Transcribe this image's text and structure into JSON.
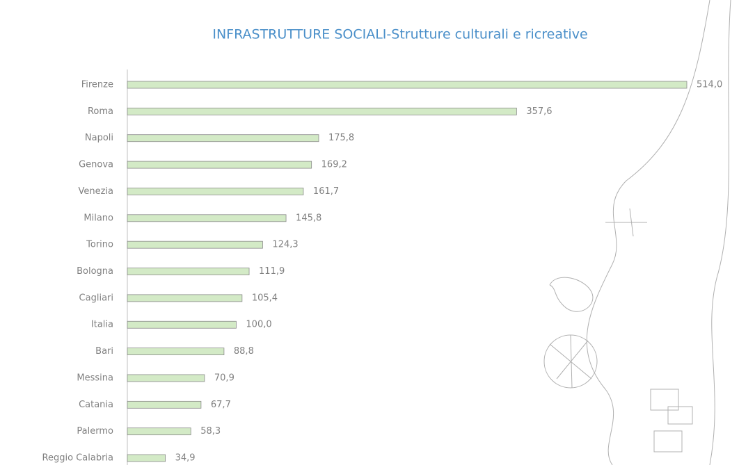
{
  "chart_data": {
    "type": "bar",
    "orientation": "horizontal",
    "title": "INFRASTRUTTURE SOCIALI-Strutture culturali e ricreative",
    "categories": [
      "Firenze",
      "Roma",
      "Napoli",
      "Genova",
      "Venezia",
      "Milano",
      "Torino",
      "Bologna",
      "Cagliari",
      "Italia",
      "Bari",
      "Messina",
      "Catania",
      "Palermo",
      "Reggio Calabria"
    ],
    "values": [
      514.0,
      357.6,
      175.8,
      169.2,
      161.7,
      145.8,
      124.3,
      111.9,
      105.4,
      100.0,
      88.8,
      70.9,
      67.7,
      58.3,
      34.9
    ],
    "value_labels": [
      "514,0",
      "357,6",
      "175,8",
      "169,2",
      "161,7",
      "145,8",
      "124,3",
      "111,9",
      "105,4",
      "100,0",
      "88,8",
      "70,9",
      "67,7",
      "58,3",
      "34,9"
    ],
    "color": "#d3eac6"
  }
}
